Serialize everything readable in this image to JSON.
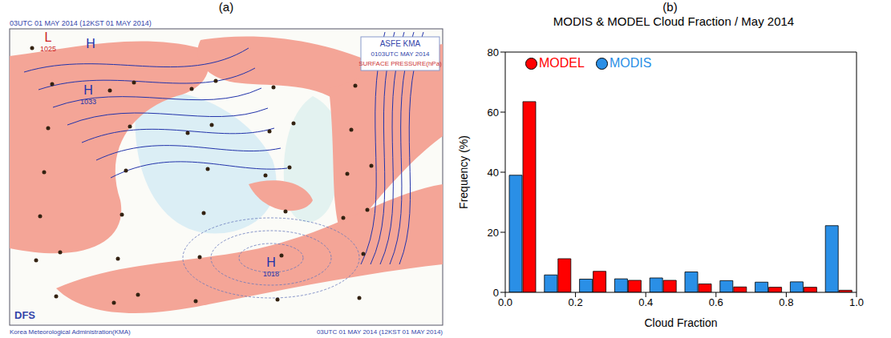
{
  "chart_data": {
    "type": "bar",
    "panel_label": "(b)",
    "title": "MODIS & MODEL Cloud Fraction / May 2014",
    "x_label": "Cloud Fraction",
    "y_label": "Frequency (%)",
    "bins": [
      0.0,
      0.1,
      0.2,
      0.3,
      0.4,
      0.5,
      0.6,
      0.7,
      0.8,
      0.9,
      1.0
    ],
    "series": [
      {
        "name": "MODEL",
        "color": "#ff0000",
        "values": [
          63.5,
          11.2,
          7.0,
          4.0,
          4.0,
          2.8,
          1.8,
          1.7,
          1.7,
          0.7
        ]
      },
      {
        "name": "MODIS",
        "color": "#2a8fe6",
        "values": [
          39.0,
          5.8,
          4.4,
          4.5,
          4.8,
          6.8,
          3.9,
          3.4,
          3.5,
          22.2
        ]
      }
    ],
    "xlim": [
      0,
      1
    ],
    "xticks": [
      {
        "value": 0,
        "label": "0.0"
      },
      0.2,
      0.4,
      0.6,
      0.8,
      {
        "value": 1,
        "label": "1.0"
      }
    ],
    "ylim": [
      0,
      80
    ],
    "yticks": [
      0,
      20,
      40,
      60,
      80
    ],
    "legend": "upper left",
    "grid": false
  },
  "map": {
    "panel_label": "(a)",
    "header": "03UTC 01 MAY 2014 (12KST 01 MAY 2014)",
    "box_lines": [
      "ASFE KMA",
      "0103UTC MAY 2014",
      "SURFACE PRESSURE(hPa)"
    ],
    "logo": "DFS",
    "footer_left": "Korea Meteorological Administration(KMA)",
    "footer_right": "03UTC 01 MAY 2014 (12KST 01 MAY 2014)",
    "pressure_centers": [
      {
        "label": "L",
        "value": 1025
      },
      {
        "label": "H"
      },
      {
        "label": "H",
        "value": 1033
      },
      {
        "label": "H",
        "value": 1018
      }
    ]
  }
}
